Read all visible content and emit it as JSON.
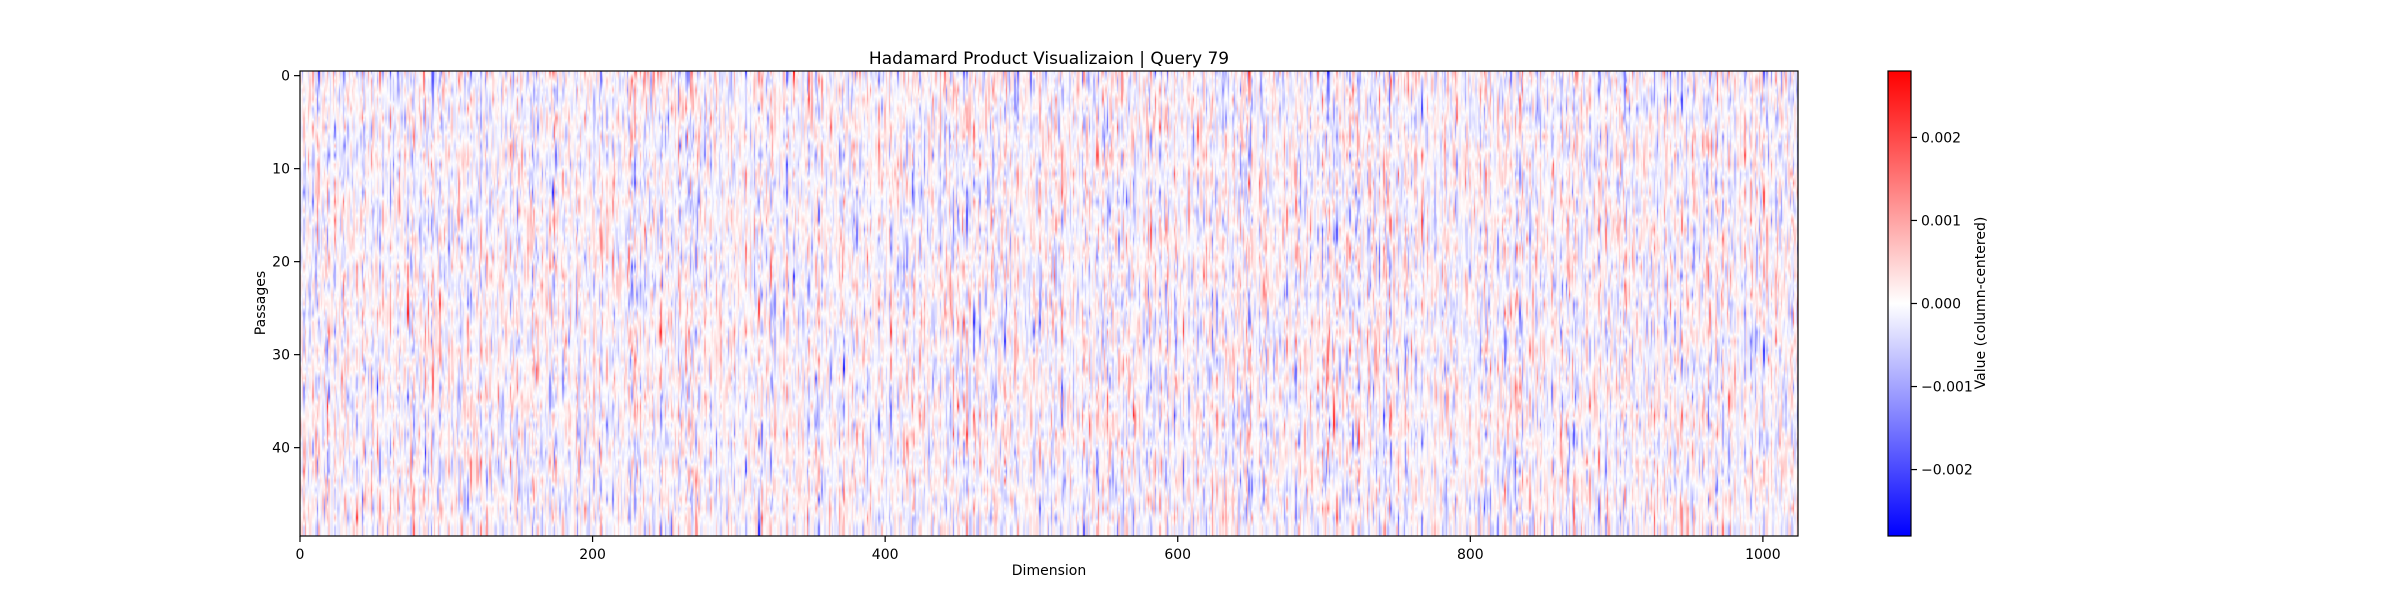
{
  "chart_data": {
    "type": "heatmap",
    "title": "Hadamard Product Visualizaion | Query 79",
    "xlabel": "Dimension",
    "ylabel": "Passages",
    "colorbar_label": "Value (column-centered)",
    "rows": 50,
    "columns": 1024,
    "xlim": [
      0,
      1024
    ],
    "ylim": [
      0,
      49
    ],
    "x_ticks": [
      0,
      200,
      400,
      600,
      800,
      1000
    ],
    "y_ticks": [
      0,
      10,
      20,
      30,
      40
    ],
    "colorbar_range": [
      -0.0028,
      0.0028
    ],
    "colorbar_ticks": [
      {
        "value": 0.002,
        "label": "0.002"
      },
      {
        "value": 0.001,
        "label": "0.001"
      },
      {
        "value": 0.0,
        "label": "0.000"
      },
      {
        "value": -0.001,
        "label": "−0.001"
      },
      {
        "value": -0.002,
        "label": "−0.002"
      }
    ],
    "colormap": "bwr",
    "colormap_colors": {
      "low": "#0000ff",
      "mid": "#ffffff",
      "high": "#ff0000"
    },
    "grid": false
  }
}
